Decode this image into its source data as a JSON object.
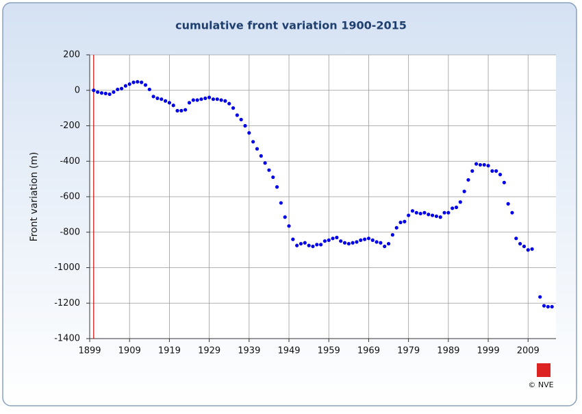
{
  "chart_data": {
    "type": "scatter",
    "title": "cumulative front variation 1900-2015",
    "y_label": "Front variation (m)",
    "credit": "© NVE",
    "x": [
      1900,
      1901,
      1902,
      1903,
      1904,
      1905,
      1906,
      1907,
      1908,
      1909,
      1910,
      1911,
      1912,
      1913,
      1914,
      1915,
      1916,
      1917,
      1918,
      1919,
      1920,
      1921,
      1922,
      1923,
      1924,
      1925,
      1926,
      1927,
      1928,
      1929,
      1930,
      1931,
      1932,
      1933,
      1934,
      1935,
      1936,
      1937,
      1938,
      1939,
      1940,
      1941,
      1942,
      1943,
      1944,
      1945,
      1946,
      1947,
      1948,
      1949,
      1950,
      1951,
      1952,
      1953,
      1954,
      1955,
      1956,
      1957,
      1958,
      1959,
      1960,
      1961,
      1962,
      1963,
      1964,
      1965,
      1966,
      1967,
      1968,
      1969,
      1970,
      1971,
      1972,
      1973,
      1974,
      1975,
      1976,
      1977,
      1978,
      1979,
      1980,
      1981,
      1982,
      1983,
      1984,
      1985,
      1986,
      1987,
      1988,
      1989,
      1990,
      1991,
      1992,
      1993,
      1994,
      1995,
      1996,
      1997,
      1998,
      1999,
      2000,
      2001,
      2002,
      2003,
      2004,
      2005,
      2006,
      2007,
      2008,
      2009,
      2010,
      2012,
      2013,
      2014,
      2015
    ],
    "values": [
      0,
      -10,
      -15,
      -18,
      -22,
      -10,
      5,
      10,
      25,
      35,
      45,
      48,
      45,
      30,
      5,
      -35,
      -45,
      -50,
      -60,
      -70,
      -85,
      -115,
      -115,
      -110,
      -70,
      -55,
      -55,
      -50,
      -45,
      -40,
      -50,
      -50,
      -55,
      -60,
      -75,
      -100,
      -140,
      -165,
      -200,
      -240,
      -290,
      -330,
      -370,
      -410,
      -450,
      -490,
      -545,
      -635,
      -715,
      -765,
      -840,
      -875,
      -865,
      -860,
      -875,
      -880,
      -870,
      -870,
      -850,
      -845,
      -835,
      -830,
      -850,
      -860,
      -865,
      -860,
      -855,
      -845,
      -840,
      -835,
      -845,
      -855,
      -860,
      -880,
      -865,
      -815,
      -775,
      -745,
      -740,
      -705,
      -680,
      -690,
      -695,
      -690,
      -700,
      -705,
      -710,
      -715,
      -690,
      -690,
      -665,
      -660,
      -630,
      -570,
      -505,
      -455,
      -415,
      -420,
      -420,
      -425,
      -455,
      -455,
      -475,
      -520,
      -640,
      -690,
      -835,
      -865,
      -880,
      -900,
      -895,
      -1165,
      -1215,
      -1220,
      -1220
    ],
    "color": "#0000e6",
    "xlim": [
      1899,
      2016
    ],
    "xticks": [
      1899,
      1909,
      1919,
      1929,
      1939,
      1949,
      1959,
      1969,
      1979,
      1989,
      1999,
      2009
    ],
    "ylim": [
      -1400,
      200
    ],
    "yticks": [
      -1400,
      -1200,
      -1000,
      -800,
      -600,
      -400,
      -200,
      0,
      200
    ],
    "grid": true
  }
}
